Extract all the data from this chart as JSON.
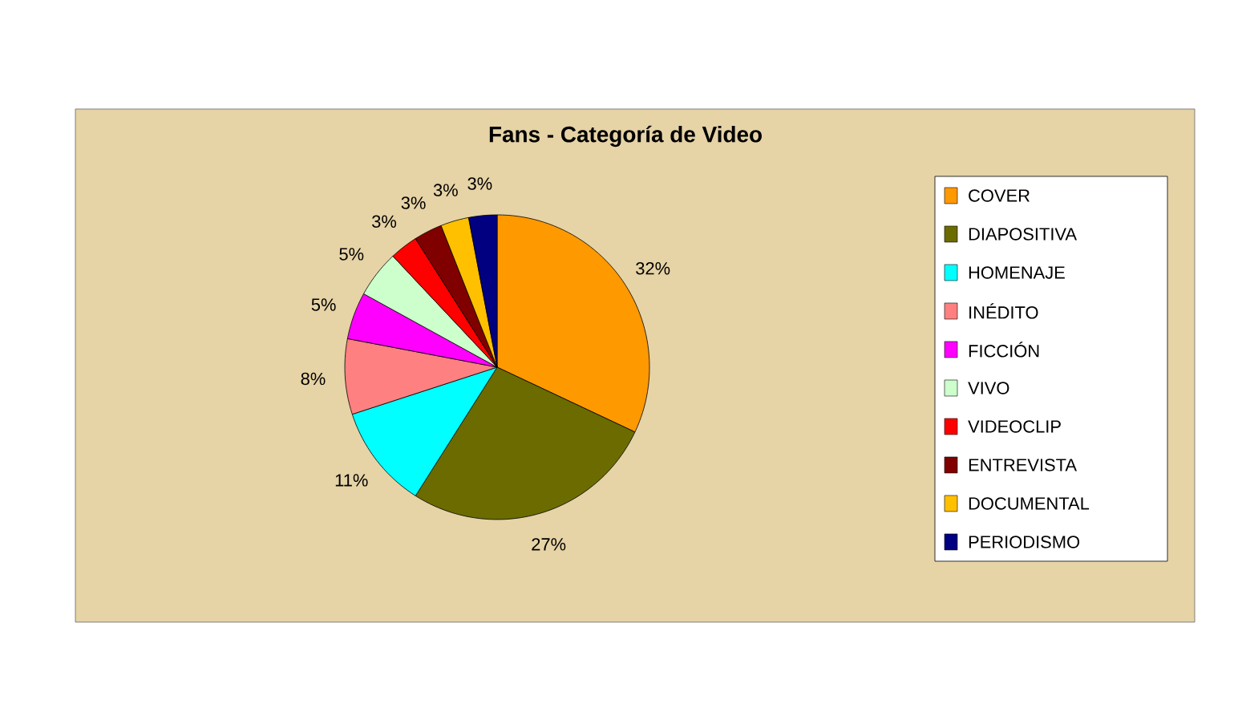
{
  "chart_data": {
    "type": "pie",
    "title": "Fans - Categoría de Video",
    "categories": [
      "COVER",
      "DIAPOSITIVA",
      "HOMENAJE",
      "INÉDITO",
      "FICCIÓN",
      "VIVO",
      "VIDEOCLIP",
      "ENTREVISTA",
      "DOCUMENTAL",
      "PERIODISMO"
    ],
    "values": [
      32,
      27,
      11,
      8,
      5,
      5,
      3,
      3,
      3,
      3
    ],
    "value_labels": [
      "32%",
      "27%",
      "11%",
      "8%",
      "5%",
      "5%",
      "3%",
      "3%",
      "3%",
      "3%"
    ],
    "colors": [
      "#ff9900",
      "#6b6b00",
      "#00ffff",
      "#ff8080",
      "#ff00ff",
      "#ccffcc",
      "#ff0000",
      "#800000",
      "#ffc000",
      "#000080"
    ],
    "legend": "right"
  }
}
